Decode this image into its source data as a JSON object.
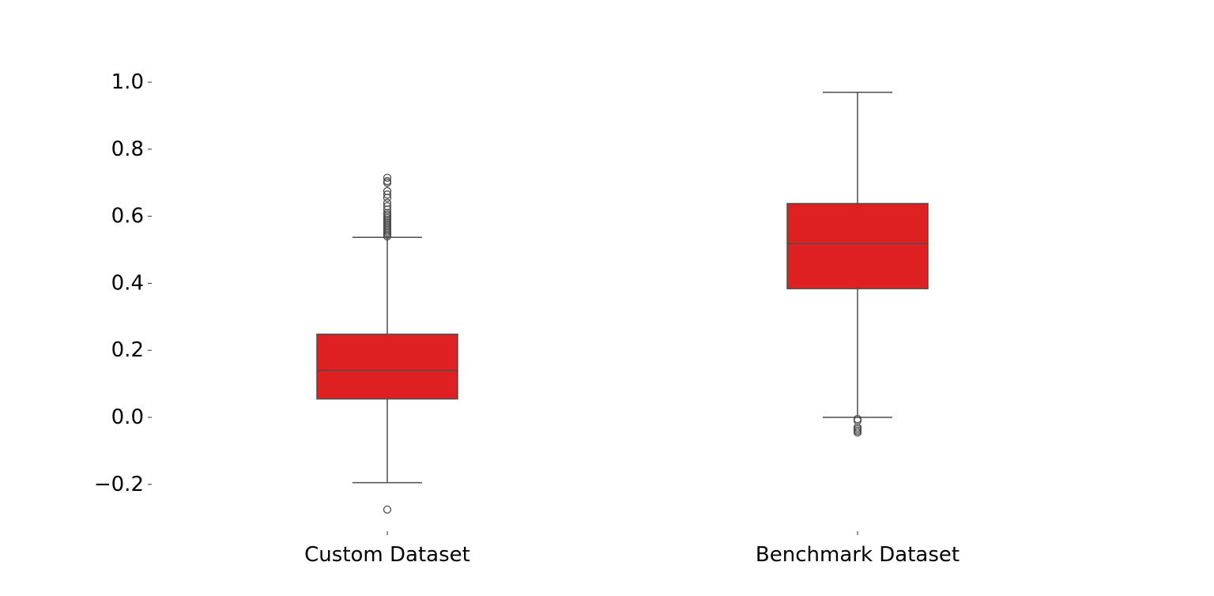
{
  "chart_data": {
    "type": "box",
    "title": "",
    "xlabel": "",
    "ylabel": "",
    "ylim": [
      -0.3,
      1.0
    ],
    "yticks": [
      -0.2,
      0.0,
      0.2,
      0.4,
      0.6,
      0.8,
      1.0
    ],
    "ytick_labels": [
      "−0.2",
      "0.0",
      "0.2",
      "0.4",
      "0.6",
      "0.8",
      "1.0"
    ],
    "grid": false,
    "legend": "none",
    "box_color": "#df2020",
    "line_color": "#4d4d4d",
    "categories": [
      "Custom Dataset",
      "Benchmark Dataset"
    ],
    "boxes": [
      {
        "category": "Custom Dataset",
        "whisker_low": -0.195,
        "q1": 0.055,
        "median": 0.14,
        "q3": 0.248,
        "whisker_high": 0.537,
        "outliers": [
          -0.275,
          0.54,
          0.545,
          0.55,
          0.555,
          0.56,
          0.565,
          0.57,
          0.575,
          0.58,
          0.585,
          0.59,
          0.595,
          0.6,
          0.605,
          0.61,
          0.62,
          0.63,
          0.64,
          0.655,
          0.665,
          0.675,
          0.7,
          0.705,
          0.715
        ]
      },
      {
        "category": "Benchmark Dataset",
        "whisker_low": 0.0,
        "q1": 0.384,
        "median": 0.518,
        "q3": 0.638,
        "whisker_high": 0.97,
        "outliers": [
          -0.005,
          -0.01,
          -0.03,
          -0.035,
          -0.04,
          -0.045
        ]
      }
    ]
  }
}
